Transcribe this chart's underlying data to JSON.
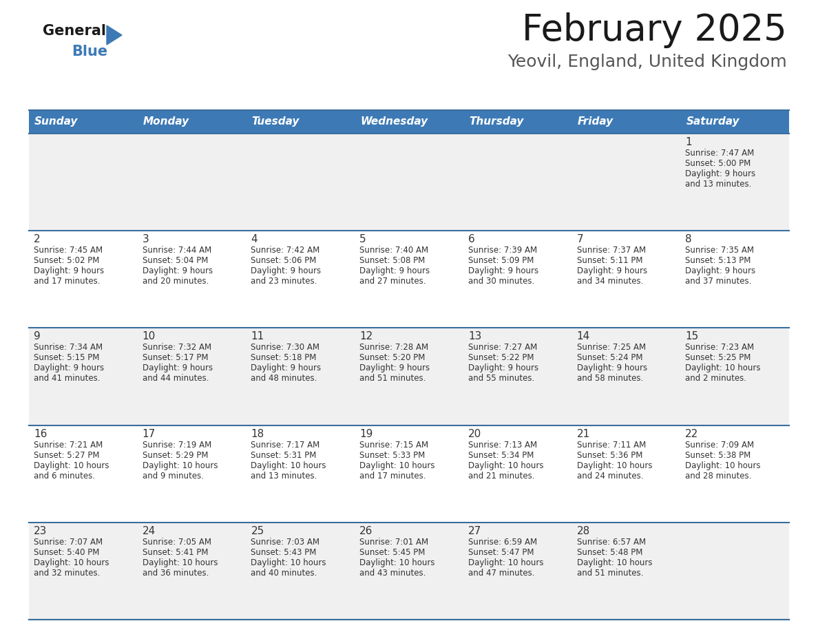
{
  "title": "February 2025",
  "subtitle": "Yeovil, England, United Kingdom",
  "header_bg": "#3d7ab5",
  "header_text": "#ffffff",
  "cell_bg_odd": "#f0f0f0",
  "cell_bg_even": "#ffffff",
  "border_color": "#3a6e9e",
  "text_color": "#333333",
  "days_of_week": [
    "Sunday",
    "Monday",
    "Tuesday",
    "Wednesday",
    "Thursday",
    "Friday",
    "Saturday"
  ],
  "calendar": [
    [
      null,
      null,
      null,
      null,
      null,
      null,
      {
        "day": "1",
        "sunrise": "7:47 AM",
        "sunset": "5:00 PM",
        "daylight": "9 hours",
        "daylight2": "and 13 minutes."
      }
    ],
    [
      {
        "day": "2",
        "sunrise": "7:45 AM",
        "sunset": "5:02 PM",
        "daylight": "9 hours",
        "daylight2": "and 17 minutes."
      },
      {
        "day": "3",
        "sunrise": "7:44 AM",
        "sunset": "5:04 PM",
        "daylight": "9 hours",
        "daylight2": "and 20 minutes."
      },
      {
        "day": "4",
        "sunrise": "7:42 AM",
        "sunset": "5:06 PM",
        "daylight": "9 hours",
        "daylight2": "and 23 minutes."
      },
      {
        "day": "5",
        "sunrise": "7:40 AM",
        "sunset": "5:08 PM",
        "daylight": "9 hours",
        "daylight2": "and 27 minutes."
      },
      {
        "day": "6",
        "sunrise": "7:39 AM",
        "sunset": "5:09 PM",
        "daylight": "9 hours",
        "daylight2": "and 30 minutes."
      },
      {
        "day": "7",
        "sunrise": "7:37 AM",
        "sunset": "5:11 PM",
        "daylight": "9 hours",
        "daylight2": "and 34 minutes."
      },
      {
        "day": "8",
        "sunrise": "7:35 AM",
        "sunset": "5:13 PM",
        "daylight": "9 hours",
        "daylight2": "and 37 minutes."
      }
    ],
    [
      {
        "day": "9",
        "sunrise": "7:34 AM",
        "sunset": "5:15 PM",
        "daylight": "9 hours",
        "daylight2": "and 41 minutes."
      },
      {
        "day": "10",
        "sunrise": "7:32 AM",
        "sunset": "5:17 PM",
        "daylight": "9 hours",
        "daylight2": "and 44 minutes."
      },
      {
        "day": "11",
        "sunrise": "7:30 AM",
        "sunset": "5:18 PM",
        "daylight": "9 hours",
        "daylight2": "and 48 minutes."
      },
      {
        "day": "12",
        "sunrise": "7:28 AM",
        "sunset": "5:20 PM",
        "daylight": "9 hours",
        "daylight2": "and 51 minutes."
      },
      {
        "day": "13",
        "sunrise": "7:27 AM",
        "sunset": "5:22 PM",
        "daylight": "9 hours",
        "daylight2": "and 55 minutes."
      },
      {
        "day": "14",
        "sunrise": "7:25 AM",
        "sunset": "5:24 PM",
        "daylight": "9 hours",
        "daylight2": "and 58 minutes."
      },
      {
        "day": "15",
        "sunrise": "7:23 AM",
        "sunset": "5:25 PM",
        "daylight": "10 hours",
        "daylight2": "and 2 minutes."
      }
    ],
    [
      {
        "day": "16",
        "sunrise": "7:21 AM",
        "sunset": "5:27 PM",
        "daylight": "10 hours",
        "daylight2": "and 6 minutes."
      },
      {
        "day": "17",
        "sunrise": "7:19 AM",
        "sunset": "5:29 PM",
        "daylight": "10 hours",
        "daylight2": "and 9 minutes."
      },
      {
        "day": "18",
        "sunrise": "7:17 AM",
        "sunset": "5:31 PM",
        "daylight": "10 hours",
        "daylight2": "and 13 minutes."
      },
      {
        "day": "19",
        "sunrise": "7:15 AM",
        "sunset": "5:33 PM",
        "daylight": "10 hours",
        "daylight2": "and 17 minutes."
      },
      {
        "day": "20",
        "sunrise": "7:13 AM",
        "sunset": "5:34 PM",
        "daylight": "10 hours",
        "daylight2": "and 21 minutes."
      },
      {
        "day": "21",
        "sunrise": "7:11 AM",
        "sunset": "5:36 PM",
        "daylight": "10 hours",
        "daylight2": "and 24 minutes."
      },
      {
        "day": "22",
        "sunrise": "7:09 AM",
        "sunset": "5:38 PM",
        "daylight": "10 hours",
        "daylight2": "and 28 minutes."
      }
    ],
    [
      {
        "day": "23",
        "sunrise": "7:07 AM",
        "sunset": "5:40 PM",
        "daylight": "10 hours",
        "daylight2": "and 32 minutes."
      },
      {
        "day": "24",
        "sunrise": "7:05 AM",
        "sunset": "5:41 PM",
        "daylight": "10 hours",
        "daylight2": "and 36 minutes."
      },
      {
        "day": "25",
        "sunrise": "7:03 AM",
        "sunset": "5:43 PM",
        "daylight": "10 hours",
        "daylight2": "and 40 minutes."
      },
      {
        "day": "26",
        "sunrise": "7:01 AM",
        "sunset": "5:45 PM",
        "daylight": "10 hours",
        "daylight2": "and 43 minutes."
      },
      {
        "day": "27",
        "sunrise": "6:59 AM",
        "sunset": "5:47 PM",
        "daylight": "10 hours",
        "daylight2": "and 47 minutes."
      },
      {
        "day": "28",
        "sunrise": "6:57 AM",
        "sunset": "5:48 PM",
        "daylight": "10 hours",
        "daylight2": "and 51 minutes."
      },
      null
    ]
  ]
}
